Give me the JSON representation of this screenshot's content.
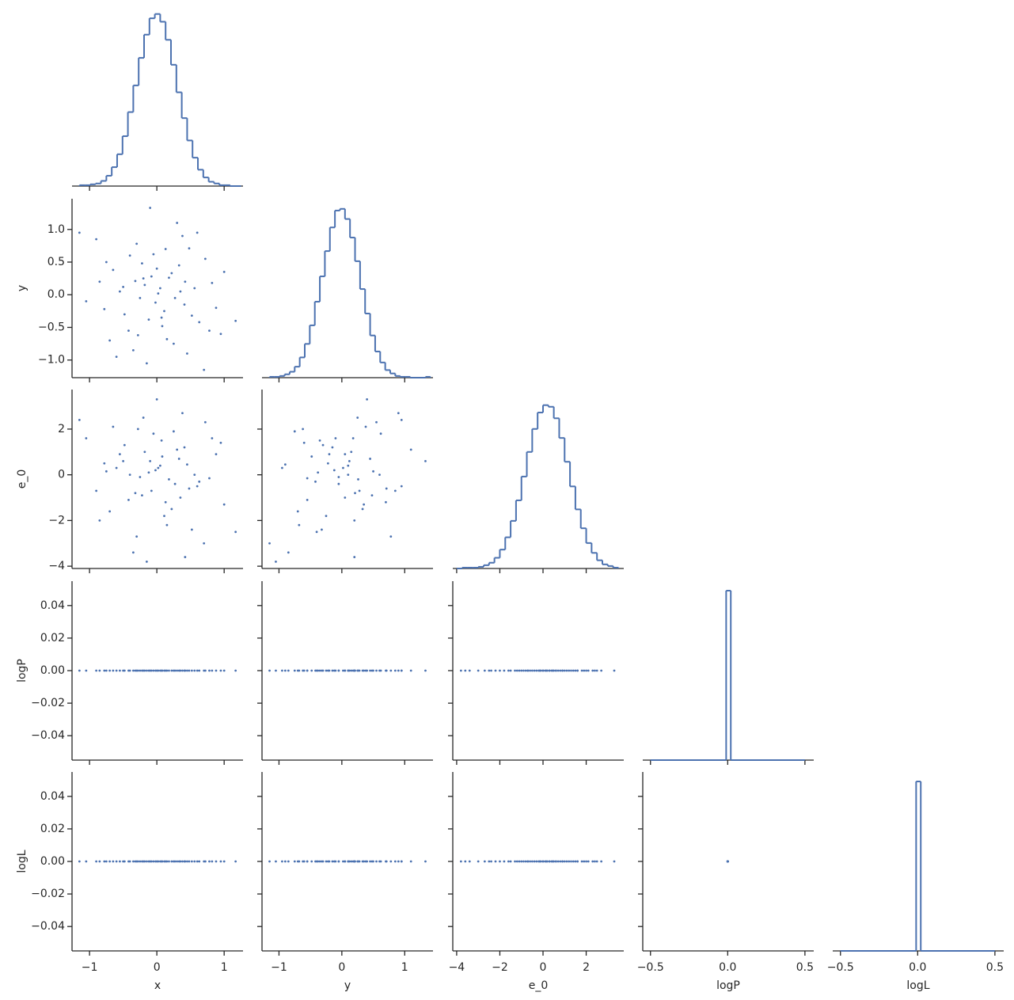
{
  "chart_data": {
    "type": "pairplot",
    "color": "#4c72b0",
    "variables": [
      {
        "name": "x",
        "xlim": [
          -1.26,
          1.28
        ],
        "xticks": [
          {
            "value": -1,
            "label": "−1"
          },
          0,
          1
        ],
        "hist": {
          "bins": [
            -1.15,
            -1.07,
            -0.99,
            -0.91,
            -0.83,
            -0.75,
            -0.67,
            -0.59,
            -0.51,
            -0.43,
            -0.35,
            -0.27,
            -0.19,
            -0.11,
            -0.03,
            0.05,
            0.13,
            0.21,
            0.29,
            0.37,
            0.45,
            0.53,
            0.61,
            0.69,
            0.77,
            0.85,
            0.93,
            1.01,
            1.09,
            1.17,
            1.25
          ],
          "counts": [
            1,
            1,
            2,
            3,
            6,
            12,
            22,
            37,
            58,
            86,
            117,
            149,
            176,
            195,
            200,
            191,
            170,
            141,
            109,
            79,
            53,
            33,
            19,
            10,
            5,
            3,
            1,
            1,
            0,
            0
          ],
          "ylim": [
            0,
            208
          ]
        }
      },
      {
        "name": "y",
        "xlim": [
          -1.27,
          1.45
        ],
        "xticks": [
          {
            "value": -1,
            "label": "−1"
          },
          0,
          1
        ],
        "ylim": [
          -1.27,
          1.47
        ],
        "yticks": [
          {
            "value": -1.0,
            "label": "−1.0"
          },
          {
            "value": -0.5,
            "label": "−0.5"
          },
          {
            "value": 0,
            "label": "0.0"
          },
          0.5,
          {
            "value": 1.0,
            "label": "1.0"
          }
        ],
        "hist": {
          "bins": [
            -1.15,
            -1.07,
            -0.99,
            -0.91,
            -0.83,
            -0.75,
            -0.67,
            -0.59,
            -0.51,
            -0.43,
            -0.35,
            -0.27,
            -0.19,
            -0.11,
            -0.03,
            0.05,
            0.13,
            0.21,
            0.29,
            0.37,
            0.45,
            0.53,
            0.61,
            0.69,
            0.77,
            0.85,
            0.93,
            1.01,
            1.09,
            1.17,
            1.25,
            1.33,
            1.41
          ],
          "counts": [
            1,
            1,
            2,
            4,
            7,
            13,
            24,
            40,
            62,
            90,
            120,
            150,
            178,
            198,
            200,
            188,
            166,
            138,
            105,
            76,
            50,
            31,
            18,
            9,
            5,
            2,
            1,
            1,
            0,
            0,
            0,
            1
          ],
          "ylim": [
            0,
            212
          ]
        }
      },
      {
        "name": "e_0",
        "xlim": [
          -4.18,
          3.74
        ],
        "xticks": [
          {
            "value": -4,
            "label": "−4"
          },
          {
            "value": -2,
            "label": "−2"
          },
          0,
          2
        ],
        "ylim": [
          -4.1,
          3.73
        ],
        "yticks": [
          {
            "value": -4,
            "label": "−4"
          },
          {
            "value": -2,
            "label": "−2"
          },
          0,
          2
        ],
        "hist": {
          "bins": [
            -4,
            -3.75,
            -3.5,
            -3.25,
            -3,
            -2.75,
            -2.5,
            -2.25,
            -2,
            -1.75,
            -1.5,
            -1.25,
            -1,
            -0.75,
            -0.5,
            -0.25,
            0,
            0.25,
            0.5,
            0.75,
            1,
            1.25,
            1.5,
            1.75,
            2,
            2.25,
            2.5,
            2.75,
            3,
            3.25,
            3.5
          ],
          "counts": [
            0,
            1,
            1,
            1,
            2,
            4,
            7,
            13,
            23,
            38,
            58,
            83,
            112,
            142,
            170,
            190,
            199,
            197,
            183,
            159,
            130,
            100,
            72,
            49,
            31,
            19,
            10,
            5,
            3,
            1
          ],
          "ylim": [
            0,
            218
          ]
        }
      },
      {
        "name": "logP",
        "xlim": [
          -0.55,
          0.557
        ],
        "xticks": [
          {
            "value": -0.5,
            "label": "−0.5"
          },
          {
            "value": 0,
            "label": "0.0"
          },
          0.5
        ],
        "ylim": [
          -0.055,
          0.055
        ],
        "yticks": [
          {
            "value": -0.04,
            "label": "−0.04"
          },
          {
            "value": -0.02,
            "label": "−0.02"
          },
          {
            "value": 0,
            "label": "0.00"
          },
          0.02,
          0.04
        ],
        "hist": {
          "bins": [
            -0.5,
            -0.01,
            0.02,
            0.5
          ],
          "counts": [
            0,
            5000,
            0
          ],
          "ylim": [
            0,
            5280
          ]
        }
      },
      {
        "name": "logL",
        "xlim": [
          -0.55,
          0.557
        ],
        "xticks": [
          {
            "value": -0.5,
            "label": "−0.5"
          },
          {
            "value": 0,
            "label": "0.0"
          },
          0.5
        ],
        "ylim": [
          -0.055,
          0.055
        ],
        "yticks": [
          {
            "value": -0.04,
            "label": "−0.04"
          },
          {
            "value": -0.02,
            "label": "−0.02"
          },
          {
            "value": 0,
            "label": "0.00"
          },
          0.02,
          0.04
        ],
        "hist": {
          "bins": [
            -0.5,
            -0.01,
            0.02,
            0.5
          ],
          "counts": [
            0,
            5000,
            0
          ],
          "ylim": [
            0,
            5280
          ]
        }
      }
    ],
    "samples": {
      "x": [
        0.05,
        -0.32,
        0.41,
        -0.12,
        0.22,
        -0.55,
        0.63,
        -0.05,
        0.15,
        -0.78,
        0.82,
        -0.25,
        0.33,
        -0.42,
        0.02,
        0.48,
        -0.65,
        0.11,
        -0.18,
        0.27,
        -1.15,
        1.17,
        -0.1,
        0.7,
        -0.9,
        0.95,
        -0.35,
        0.38,
        -0.02,
        0.18,
        -0.48,
        0.56,
        -0.22,
        0.08,
        -0.7,
        0.72,
        -0.3,
        0.45,
        -0.85,
        0.88,
        0,
        -0.15,
        0.3,
        -1.05,
        1,
        -0.6,
        0.6,
        -0.4,
        0.25,
        -0.08,
        0.13,
        -0.28,
        0.52,
        -0.5,
        0.07,
        0.35,
        -0.75,
        0.78,
        -0.2,
        0.42
      ],
      "y": [
        0.1,
        0.21,
        -0.15,
        -0.38,
        0.33,
        0.05,
        -0.42,
        0.62,
        -0.68,
        -0.22,
        0.18,
        -0.05,
        0.45,
        -0.55,
        0.02,
        0.71,
        0.38,
        -0.25,
        0.15,
        -0.05,
        0.95,
        -0.4,
        1.33,
        -1.15,
        0.85,
        -0.6,
        -0.85,
        0.9,
        -0.12,
        0.26,
        -0.3,
        0.1,
        0.48,
        -0.48,
        -0.7,
        0.55,
        0.78,
        -0.9,
        0.2,
        -0.2,
        0.4,
        -1.05,
        1.1,
        -0.1,
        0.35,
        -0.95,
        0.95,
        0.6,
        -0.75,
        0.28,
        0.7,
        -0.62,
        -0.32,
        0.12,
        -0.35,
        0.05,
        0.5,
        -0.55,
        0.25,
        0.2
      ],
      "e_0": [
        0.4,
        -0.8,
        1.2,
        0.1,
        -1.5,
        0.9,
        -0.3,
        1.8,
        -2.2,
        0.5,
        1.6,
        -0.1,
        0.7,
        -1.1,
        0.3,
        -0.6,
        2.1,
        -1.8,
        1,
        -0.4,
        2.4,
        -2.5,
        0.6,
        -3,
        -0.7,
        1.4,
        -3.4,
        2.7,
        0.2,
        -0.2,
        1.3,
        0,
        -0.9,
        0.8,
        -1.6,
        2.3,
        -2.7,
        0.45,
        -2,
        0.9,
        3.3,
        -3.8,
        1.1,
        1.6,
        -1.3,
        0.3,
        -0.5,
        0,
        1.9,
        -0.7,
        -1.2,
        2,
        -2.4,
        0.6,
        1.5,
        -1,
        0.15,
        -0.15,
        2.5,
        -3.6
      ],
      "logP": [
        0,
        0,
        0,
        0,
        0,
        0,
        0,
        0,
        0,
        0,
        0,
        0,
        0,
        0,
        0,
        0,
        0,
        0,
        0,
        0,
        0,
        0,
        0,
        0,
        0,
        0,
        0,
        0,
        0,
        0,
        0,
        0,
        0,
        0,
        0,
        0,
        0,
        0,
        0,
        0,
        0,
        0,
        0,
        0,
        0,
        0,
        0,
        0,
        0,
        0,
        0,
        0,
        0,
        0,
        0,
        0,
        0,
        0,
        0,
        0
      ],
      "logL": [
        0,
        0,
        0,
        0,
        0,
        0,
        0,
        0,
        0,
        0,
        0,
        0,
        0,
        0,
        0,
        0,
        0,
        0,
        0,
        0,
        0,
        0,
        0,
        0,
        0,
        0,
        0,
        0,
        0,
        0,
        0,
        0,
        0,
        0,
        0,
        0,
        0,
        0,
        0,
        0,
        0,
        0,
        0,
        0,
        0,
        0,
        0,
        0,
        0,
        0,
        0,
        0,
        0,
        0,
        0,
        0,
        0,
        0,
        0,
        0
      ]
    }
  }
}
